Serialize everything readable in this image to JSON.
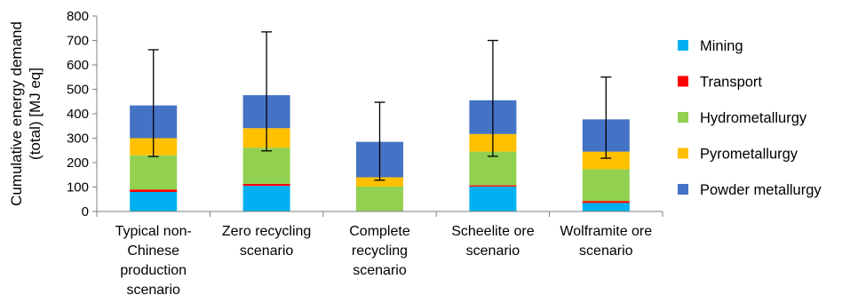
{
  "chart_data": {
    "type": "bar",
    "stacked": true,
    "ylabel_lines": [
      "Cumulative energy demand",
      "(total) [MJ eq]"
    ],
    "ylim": [
      0,
      800
    ],
    "yticks": [
      0,
      100,
      200,
      300,
      400,
      500,
      600,
      700,
      800
    ],
    "grid": false,
    "legend_position": "right",
    "categories": [
      [
        "Typical non-",
        "Chinese",
        "production",
        "scenario"
      ],
      [
        "Zero recycling",
        "scenario"
      ],
      [
        "Complete",
        "recycling",
        "scenario"
      ],
      [
        "Scheelite ore",
        "scenario"
      ],
      [
        "Wolframite ore",
        "scenario"
      ]
    ],
    "series": [
      {
        "name": "Mining",
        "color": "#00b0f0",
        "values": [
          80,
          105,
          0,
          102,
          35
        ]
      },
      {
        "name": "Transport",
        "color": "#ff0000",
        "values": [
          10,
          8,
          0,
          5,
          8
        ]
      },
      {
        "name": "Hydrometallurgy",
        "color": "#92d050",
        "values": [
          140,
          148,
          102,
          138,
          130
        ]
      },
      {
        "name": "Pyrometallurgy",
        "color": "#ffc000",
        "values": [
          70,
          80,
          38,
          72,
          72
        ]
      },
      {
        "name": "Powder metallurgy",
        "color": "#4472c4",
        "values": [
          134,
          135,
          145,
          138,
          132
        ]
      }
    ],
    "error_bars": [
      {
        "low": 225,
        "high": 662
      },
      {
        "low": 248,
        "high": 735
      },
      {
        "low": 128,
        "high": 447
      },
      {
        "low": 226,
        "high": 700
      },
      {
        "low": 218,
        "high": 550
      }
    ]
  }
}
